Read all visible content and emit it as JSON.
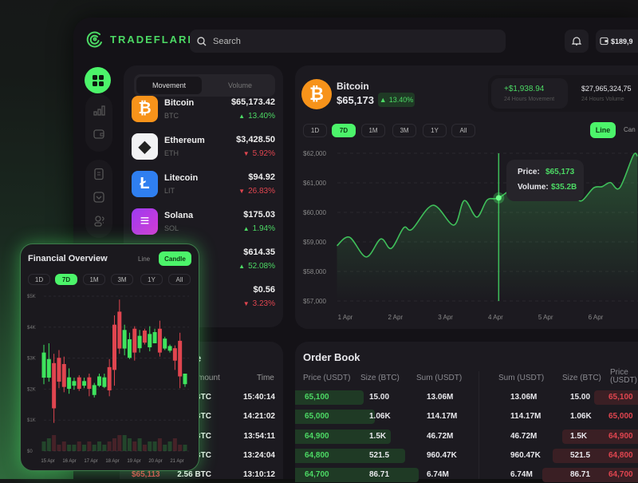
{
  "app": {
    "name": "TRADEFLARE",
    "search_placeholder": "Search",
    "wallet_balance": "$189,9"
  },
  "colors": {
    "accent": "#4cf46a",
    "up": "#4cd964",
    "down": "#e0454f",
    "bitcoin": "#f7931a",
    "litecoin": "#2f7ff0",
    "solana": "#b03ce8"
  },
  "sidebar": {
    "items": [
      {
        "icon": "grid-icon",
        "active": true
      },
      {
        "icon": "bar-chart-icon"
      },
      {
        "icon": "wallet-icon"
      },
      {
        "icon": "document-icon"
      },
      {
        "icon": "mail-icon"
      },
      {
        "icon": "users-icon"
      }
    ]
  },
  "coin_list": {
    "tabs": [
      "Movement",
      "Volume"
    ],
    "active_tab": "Movement",
    "coins": [
      {
        "name": "Bitcoin",
        "symbol": "BTC",
        "price": "$65,173.42",
        "change": "13.40%",
        "dir": "up",
        "icon": "bitcoin-icon"
      },
      {
        "name": "Ethereum",
        "symbol": "ETH",
        "price": "$3,428.50",
        "change": "5.92%",
        "dir": "down",
        "icon": "ethereum-icon"
      },
      {
        "name": "Litecoin",
        "symbol": "LIT",
        "price": "$94.92",
        "change": "26.83%",
        "dir": "down",
        "icon": "litecoin-icon"
      },
      {
        "name": "Solana",
        "symbol": "SOL",
        "price": "$175.03",
        "change": "1.94%",
        "dir": "up",
        "icon": "solana-icon"
      },
      {
        "price": "$614.35",
        "change": "52.08%",
        "dir": "up"
      },
      {
        "price": "$0.56",
        "change": "3.23%",
        "dir": "down"
      }
    ]
  },
  "main": {
    "coin": "Bitcoin",
    "price": "$65,173",
    "change": "13.40%",
    "movement": "+$1,938.94",
    "movement_label": "24 Hours Movement",
    "volume": "$27,965,324,75",
    "volume_label": "24 Hours Volume",
    "periods": [
      "1D",
      "7D",
      "1M",
      "3M",
      "1Y",
      "All"
    ],
    "active_period": "7D",
    "views": [
      "Line",
      "Can"
    ],
    "active_view": "Line",
    "tooltip": {
      "price_label": "Price:",
      "price": "$65,173",
      "volume_label": "Volume:",
      "volume": "$35.2B"
    }
  },
  "chart_data": [
    {
      "type": "area",
      "title": "",
      "xlabel": "",
      "ylabel": "",
      "ylim": [
        57000,
        62000
      ],
      "grid": true,
      "y_ticks": [
        "$57,000",
        "$58,000",
        "$59,000",
        "$60,000",
        "$61,000",
        "$62,000"
      ],
      "x_ticks": [
        "1 Apr",
        "2 Apr",
        "3 Apr",
        "4 Apr",
        "5 Apr",
        "6 Apr"
      ],
      "series": [
        {
          "x": [
            "31 Mar 20:00",
            "1 Apr 02:00",
            "1 Apr 10:00",
            "1 Apr 17:00",
            "1 Apr 22:00",
            "2 Apr 04:00",
            "2 Apr 08:00",
            "2 Apr 18:00",
            "3 Apr 04:00",
            "3 Apr 09:00",
            "3 Apr 15:00",
            "3 Apr 20:00",
            "4 Apr 01:30",
            "4 Apr 12:00",
            "5 Apr 06:00",
            "5 Apr 14:00",
            "5 Apr 17:30",
            "5 Apr 23:00",
            "6 Apr 03:00",
            "6 Apr 07:00",
            "6 Apr 11:30",
            "6 Apr 18:00",
            "6 Apr 20:00"
          ],
          "y": [
            58870,
            59160,
            58490,
            59100,
            58780,
            59480,
            59430,
            60240,
            59570,
            60400,
            59840,
            60420,
            60490,
            60900,
            60700,
            60500,
            60400,
            60830,
            60870,
            61010,
            60830,
            61930,
            61900
          ]
        }
      ],
      "highlight": "4 Apr 01:30"
    },
    {
      "type": "candlestick",
      "title": "Financial Overview",
      "views": [
        "Line",
        "Candle"
      ],
      "active_view": "Candle",
      "periods": [
        "1D",
        "7D",
        "1M",
        "3M",
        "1Y",
        "All"
      ],
      "active_period": "7D",
      "ylim": [
        0,
        5000
      ],
      "y_ticks": [
        "$0",
        "$1K",
        "$2K",
        "$3K",
        "$4K",
        "$5K"
      ],
      "x_ticks": [
        "15 Apr",
        "16 Apr",
        "17 Apr",
        "18 Apr",
        "19 Apr",
        "20 Apr",
        "21 Apr"
      ],
      "ohlc": [
        [
          2370,
          3430,
          2160,
          3180
        ],
        [
          2370,
          3480,
          2240,
          2970
        ],
        [
          2840,
          3140,
          910,
          1380
        ],
        [
          3010,
          3260,
          2030,
          2240
        ],
        [
          2810,
          3050,
          1900,
          2070
        ],
        [
          2010,
          2670,
          1850,
          2380
        ],
        [
          2110,
          2370,
          1980,
          2260
        ],
        [
          2380,
          2450,
          1940,
          2010
        ],
        [
          2110,
          2370,
          2030,
          2260
        ],
        [
          2380,
          2500,
          1770,
          2010
        ],
        [
          1810,
          2200,
          1730,
          2130
        ],
        [
          2110,
          2500,
          2070,
          2410
        ],
        [
          2070,
          2500,
          2030,
          2380
        ],
        [
          2710,
          2970,
          1770,
          1960
        ],
        [
          4080,
          4380,
          2110,
          2620
        ],
        [
          4500,
          4890,
          3140,
          3310
        ],
        [
          3310,
          4080,
          3090,
          3910
        ],
        [
          3010,
          3820,
          2970,
          3610
        ],
        [
          3950,
          4030,
          2920,
          3180
        ],
        [
          3320,
          3910,
          3180,
          3720
        ],
        [
          3890,
          3950,
          3440,
          3500
        ],
        [
          3350,
          4030,
          3220,
          3780
        ],
        [
          3480,
          3950,
          3480,
          3840
        ],
        [
          3950,
          4210,
          3050,
          3180
        ],
        [
          3310,
          3690,
          3260,
          3630
        ],
        [
          3240,
          3440,
          3180,
          3390
        ],
        [
          3320,
          3410,
          2620,
          2920
        ],
        [
          3560,
          3820,
          2030,
          2410
        ],
        [
          2160,
          2500,
          2070,
          2500
        ]
      ],
      "volume": [
        3,
        4,
        5,
        2,
        3,
        2,
        2,
        3,
        2,
        3,
        2,
        3,
        2,
        3,
        4,
        5,
        5,
        4,
        3,
        4,
        2,
        3,
        3,
        4,
        2,
        3,
        4,
        2,
        2
      ]
    }
  ],
  "trades": {
    "title_fragment": "e",
    "amount_header": "mount",
    "time_header": "Time",
    "rows": [
      {
        "amount": "2 BTC",
        "time": "15:40:14"
      },
      {
        "amount": "2 BTC",
        "time": "14:21:02"
      },
      {
        "amount": "2 BTC",
        "time": "13:54:11"
      },
      {
        "amount": "1 BTC",
        "time": "13:24:04"
      },
      {
        "price": "$65,113",
        "amount": "2.56 BTC",
        "time": "13:10:12"
      }
    ]
  },
  "order_book": {
    "title": "Order Book",
    "headers": [
      "Price (USDT)",
      "Size (BTC)",
      "Sum (USDT)",
      "Sum (USDT)",
      "Size (BTC)",
      "Price (USDT)"
    ],
    "rows": [
      {
        "price": "65,100",
        "size": "15.00",
        "sum": "13.06M",
        "ask_sum": "13.06M",
        "ask_size": "15.00",
        "ask_price": "65,100"
      },
      {
        "price": "65,000",
        "size": "1.06K",
        "sum": "114.17M",
        "ask_sum": "114.17M",
        "ask_size": "1.06K",
        "ask_price": "65,000"
      },
      {
        "price": "64,900",
        "size": "1.5K",
        "sum": "46.72M",
        "ask_sum": "46.72M",
        "ask_size": "1.5K",
        "ask_price": "64,900"
      },
      {
        "price": "64,800",
        "size": "521.5",
        "sum": "960.47K",
        "ask_sum": "960.47K",
        "ask_size": "521.5",
        "ask_price": "64,800"
      },
      {
        "price": "64,700",
        "size": "86.71",
        "sum": "6.74M",
        "ask_sum": "6.74M",
        "ask_size": "86.71",
        "ask_price": "64,700"
      }
    ]
  }
}
